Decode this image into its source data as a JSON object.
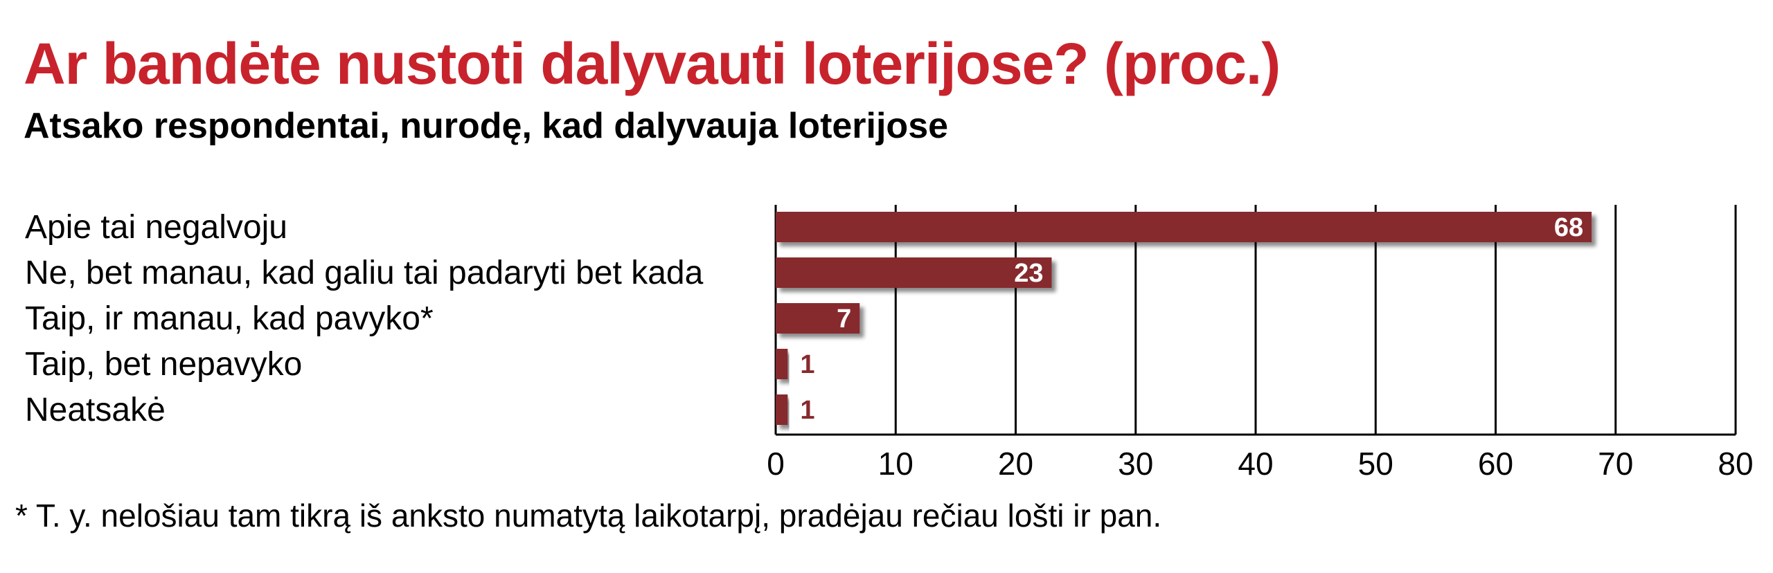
{
  "chart_data": {
    "type": "bar",
    "orientation": "horizontal",
    "title": "Ar bandėte nustoti dalyvauti loterijose? (proc.)",
    "subtitle": "Atsako respondentai, nurodę, kad dalyvauja loterijose",
    "categories": [
      "Apie tai negalvoju",
      "Ne, bet manau, kad galiu tai padaryti bet kada",
      "Taip, ir manau, kad pavyko*",
      "Taip, bet nepavyko",
      "Neatsakė"
    ],
    "values": [
      68,
      23,
      7,
      1,
      1
    ],
    "value_labels": [
      "68",
      "23",
      "7",
      "1",
      "1"
    ],
    "xlim": [
      0,
      80
    ],
    "xticks": [
      0,
      10,
      20,
      30,
      40,
      50,
      60,
      70,
      80
    ],
    "xtick_labels": [
      "0",
      "10",
      "20",
      "30",
      "40",
      "50",
      "60",
      "70",
      "80"
    ],
    "grid": true,
    "bar_color": "#862a2e",
    "title_color": "#c8232c",
    "footnote": "* T. y. nelošiau tam tikrą iš anksto numatytą laikotarpį, pradėjau rečiau lošti ir pan."
  }
}
